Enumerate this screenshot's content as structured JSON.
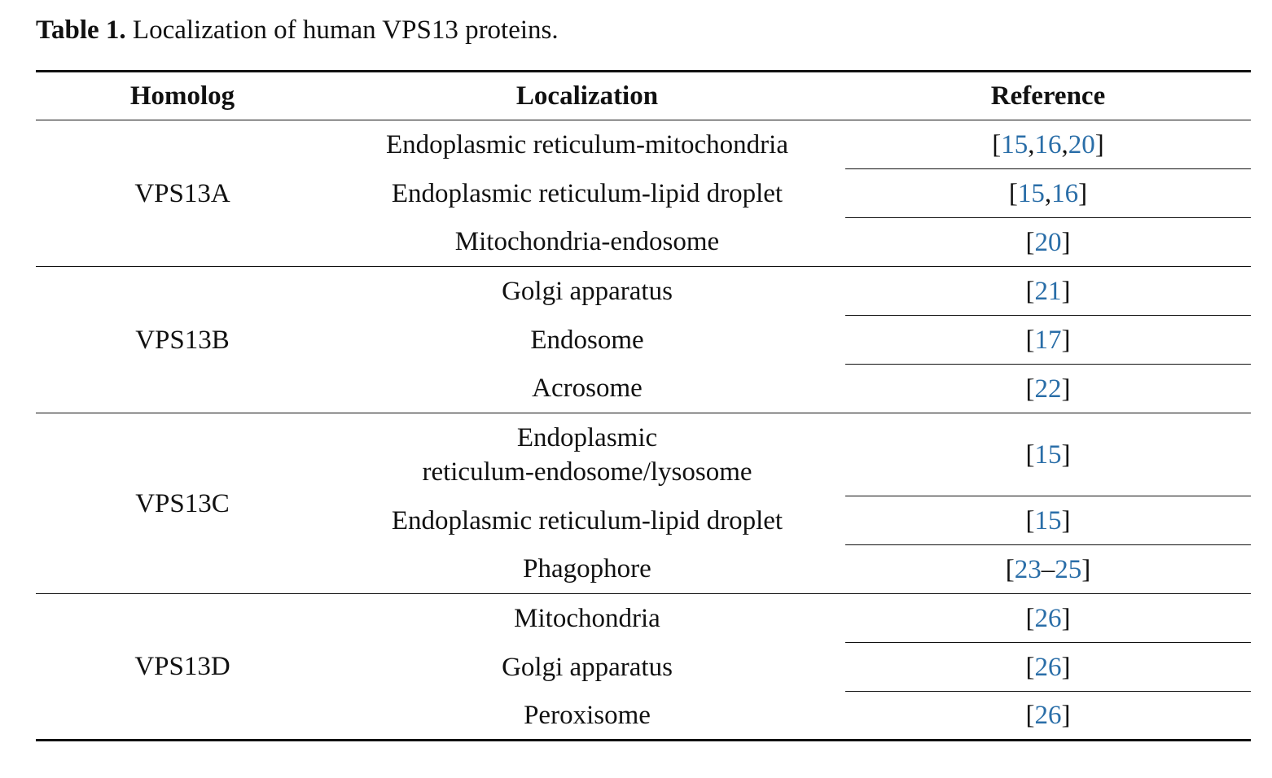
{
  "caption": {
    "label": "Table 1.",
    "text": "Localization of human VPS13 proteins."
  },
  "table": {
    "headers": [
      "Homolog",
      "Localization",
      "Reference"
    ],
    "groups": [
      {
        "homolog": "VPS13A",
        "rows": [
          {
            "localization": "Endoplasmic reticulum-mitochondria",
            "refs": [
              "15",
              ",",
              "16",
              ",",
              "20"
            ]
          },
          {
            "localization": "Endoplasmic reticulum-lipid droplet",
            "refs": [
              "15",
              ",",
              "16"
            ]
          },
          {
            "localization": "Mitochondria-endosome",
            "refs": [
              "20"
            ]
          }
        ]
      },
      {
        "homolog": "VPS13B",
        "rows": [
          {
            "localization": "Golgi apparatus",
            "refs": [
              "21"
            ]
          },
          {
            "localization": "Endosome",
            "refs": [
              "17"
            ]
          },
          {
            "localization": "Acrosome",
            "refs": [
              "22"
            ]
          }
        ]
      },
      {
        "homolog": "VPS13C",
        "rows": [
          {
            "localization": "Endoplasmic",
            "localization_line2": "reticulum-endosome/lysosome",
            "refs": [
              "15"
            ]
          },
          {
            "localization": "Endoplasmic reticulum-lipid droplet",
            "refs": [
              "15"
            ]
          },
          {
            "localization": "Phagophore",
            "refs": [
              "23",
              "–",
              "25"
            ]
          }
        ]
      },
      {
        "homolog": "VPS13D",
        "rows": [
          {
            "localization": "Mitochondria",
            "refs": [
              "26"
            ]
          },
          {
            "localization": "Golgi apparatus",
            "refs": [
              "26"
            ]
          },
          {
            "localization": "Peroxisome",
            "refs": [
              "26"
            ]
          }
        ]
      }
    ]
  },
  "colors": {
    "citation_link": "#2a6ea8",
    "text": "#111111"
  }
}
